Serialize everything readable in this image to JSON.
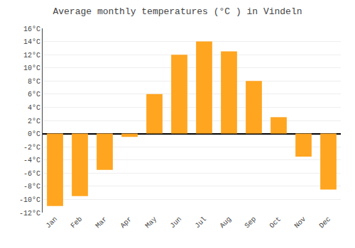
{
  "chart_data": {
    "type": "bar",
    "title": "Average monthly temperatures (°C ) in Vindeln",
    "categories": [
      "Jan",
      "Feb",
      "Mar",
      "Apr",
      "May",
      "Jun",
      "Jul",
      "Aug",
      "Sep",
      "Oct",
      "Nov",
      "Dec"
    ],
    "values": [
      -11,
      -9.5,
      -5.5,
      -0.5,
      6,
      12,
      14,
      12.5,
      8,
      2.5,
      -3.5,
      -8.5
    ],
    "color": "#FFA520",
    "ylim": [
      -12,
      16
    ],
    "yticks": [
      {
        "value": -12,
        "label": "-12°C"
      },
      {
        "value": -10,
        "label": "-10°C"
      },
      {
        "value": -8,
        "label": "-8°C"
      },
      {
        "value": -6,
        "label": "-6°C"
      },
      {
        "value": -4,
        "label": "-4°C"
      },
      {
        "value": -2,
        "label": "-2°C"
      },
      {
        "value": 0,
        "label": "0°C"
      },
      {
        "value": 2,
        "label": "2°C"
      },
      {
        "value": 4,
        "label": "4°C"
      },
      {
        "value": 6,
        "label": "6°C"
      },
      {
        "value": 8,
        "label": "8°C"
      },
      {
        "value": 10,
        "label": "10°C"
      },
      {
        "value": 12,
        "label": "12°C"
      },
      {
        "value": 14,
        "label": "14°C"
      },
      {
        "value": 16,
        "label": "16°C"
      }
    ],
    "grid": true
  }
}
